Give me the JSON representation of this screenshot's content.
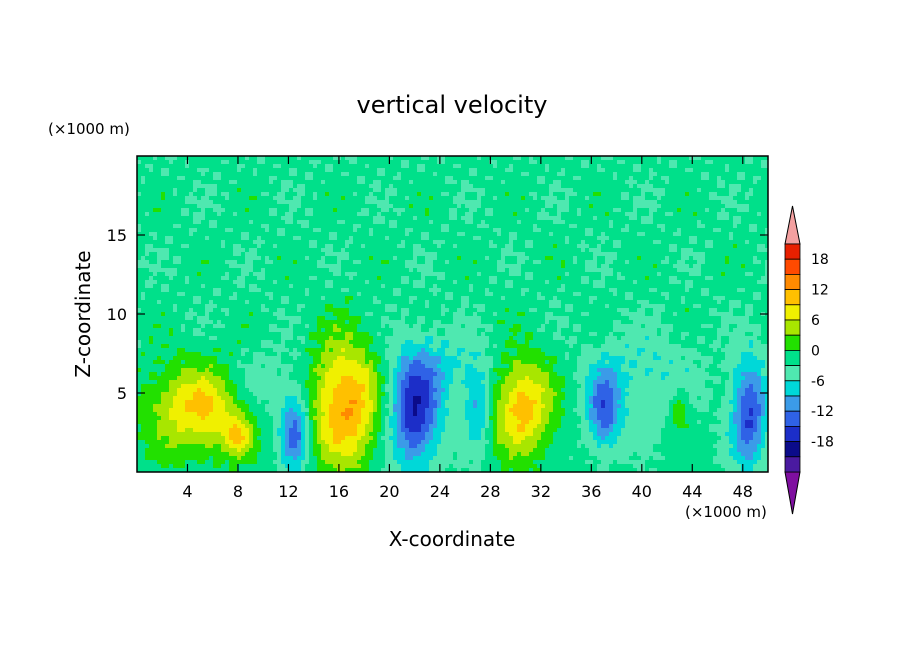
{
  "chart_data": {
    "type": "heatmap",
    "title": "vertical velocity",
    "xlabel": "X-coordinate",
    "ylabel": "Z-coordinate",
    "x_unit": "(×1000 m)",
    "y_unit": "(×1000 m)",
    "xlim": [
      0,
      50
    ],
    "ylim": [
      0,
      20
    ],
    "x_ticks": [
      4,
      8,
      12,
      16,
      20,
      24,
      28,
      32,
      36,
      40,
      44,
      48
    ],
    "y_ticks": [
      5,
      10,
      15
    ],
    "grid": false,
    "colorbar": {
      "placement": "right",
      "levels": [
        -21,
        -18,
        -15,
        -12,
        -9,
        -6,
        -3,
        0,
        3,
        6,
        9,
        12,
        15,
        18,
        21
      ],
      "labels": [
        18,
        12,
        6,
        0,
        -6,
        -12,
        -18
      ],
      "extend": "both",
      "colors": [
        "#7f0fa0",
        "#4a1aa0",
        "#0b0b8a",
        "#1c2ec8",
        "#2f62e6",
        "#3b9be8",
        "#00d8d8",
        "#4fe8b0",
        "#00e08a",
        "#22e000",
        "#a8e600",
        "#f0f000",
        "#ffc000",
        "#ff8a00",
        "#ff4a00",
        "#e82000",
        "#f4a0a0"
      ]
    },
    "cells": [
      {
        "x": 5.0,
        "z": 4.0,
        "sx": 2.8,
        "sz": 2.0,
        "v": 12
      },
      {
        "x": 8.0,
        "z": 2.2,
        "sx": 0.7,
        "sz": 0.8,
        "v": 8
      },
      {
        "x": 12.5,
        "z": 2.5,
        "sx": 0.8,
        "sz": 1.6,
        "v": -12
      },
      {
        "x": 16.5,
        "z": 4.3,
        "sx": 1.9,
        "sz": 2.8,
        "v": 15
      },
      {
        "x": 22.0,
        "z": 3.8,
        "sx": 1.4,
        "sz": 2.6,
        "v": -15
      },
      {
        "x": 27.0,
        "z": 4.0,
        "sx": 0.7,
        "sz": 1.6,
        "v": -8
      },
      {
        "x": 30.5,
        "z": 4.2,
        "sx": 1.7,
        "sz": 2.2,
        "v": 13
      },
      {
        "x": 37.0,
        "z": 3.8,
        "sx": 0.9,
        "sz": 1.8,
        "v": -11
      },
      {
        "x": 43.0,
        "z": 4.0,
        "sx": 0.6,
        "sz": 1.0,
        "v": 5
      },
      {
        "x": 48.5,
        "z": 3.8,
        "sx": 1.0,
        "sz": 2.4,
        "v": -13
      },
      {
        "x": 10.0,
        "z": 5.5,
        "sx": 2.5,
        "sz": 1.5,
        "v": -4
      },
      {
        "x": 25.0,
        "z": 6.5,
        "sx": 3.0,
        "sz": 1.5,
        "v": -4
      },
      {
        "x": 40.0,
        "z": 6.0,
        "sx": 3.0,
        "sz": 2.0,
        "v": -4
      }
    ]
  }
}
